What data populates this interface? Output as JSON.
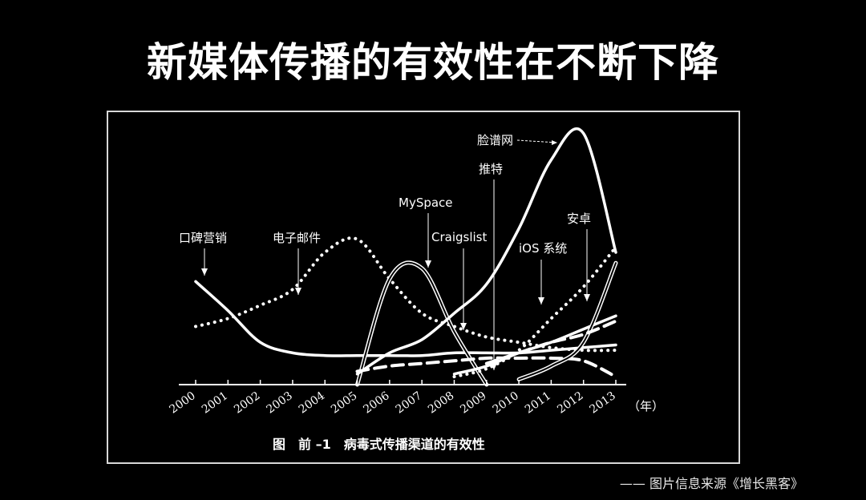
{
  "slide": {
    "title": "新媒体传播的有效性在不断下降",
    "source": "—— 图片信息来源《增长黑客》"
  },
  "chart_data": {
    "type": "line",
    "caption": "图　前 –1　病毒式传播渠道的有效性",
    "x_unit": "（年）",
    "categories": [
      "2000",
      "2001",
      "2002",
      "2003",
      "2004",
      "2005",
      "2006",
      "2007",
      "2008",
      "2009",
      "2010",
      "2011",
      "2012",
      "2013"
    ],
    "ylim": [
      0,
      100
    ],
    "grid": false,
    "legend": "inline-annotations",
    "series": [
      {
        "name": "口碑营销",
        "style": "solid",
        "x": [
          2000,
          2001,
          2002,
          2003,
          2004,
          2005,
          2006,
          2007,
          2008,
          2009,
          2010,
          2011,
          2012,
          2013
        ],
        "y": [
          39,
          28,
          16,
          12,
          11,
          11,
          11,
          11,
          12,
          12,
          12,
          13,
          14,
          15
        ]
      },
      {
        "name": "电子邮件",
        "style": "dotted",
        "x": [
          2000,
          2001,
          2002,
          2003,
          2004,
          2005,
          2006,
          2007,
          2008,
          2009,
          2010,
          2011,
          2012,
          2013
        ],
        "y": [
          22,
          25,
          30,
          36,
          50,
          55,
          40,
          27,
          22,
          18,
          16,
          14,
          13,
          13
        ]
      },
      {
        "name": "MySpace",
        "style": "double",
        "x": [
          2005,
          2006,
          2007,
          2008,
          2009
        ],
        "y": [
          0,
          40,
          44,
          20,
          0
        ]
      },
      {
        "name": "Craigslist",
        "style": "dashed",
        "x": [
          2005,
          2006,
          2007,
          2008,
          2009,
          2010,
          2011,
          2012,
          2013
        ],
        "y": [
          5,
          7,
          8,
          9,
          10,
          10,
          10,
          9,
          3
        ]
      },
      {
        "name": "推特",
        "style": "dotted",
        "x": [
          2008,
          2009,
          2010,
          2011,
          2012,
          2013
        ],
        "y": [
          3,
          6,
          13,
          25,
          37,
          52
        ]
      },
      {
        "name": "脸谱网",
        "style": "solid",
        "x": [
          2005,
          2006,
          2007,
          2008,
          2009,
          2010,
          2011,
          2012,
          2013
        ],
        "y": [
          4,
          12,
          17,
          27,
          38,
          59,
          85,
          95,
          50
        ]
      },
      {
        "name": "iOS 系统",
        "style": "solid",
        "x": [
          2008,
          2009,
          2010,
          2011,
          2012,
          2013
        ],
        "y": [
          4,
          7,
          12,
          16,
          21,
          26
        ]
      },
      {
        "name": "安卓",
        "style": "double",
        "x": [
          2010,
          2011,
          2012,
          2013
        ],
        "y": [
          2,
          7,
          16,
          46
        ]
      },
      {
        "name": "",
        "style": "dashed",
        "x": [
          2009,
          2010,
          2011,
          2012,
          2013
        ],
        "y": [
          8,
          12,
          16,
          19,
          24
        ]
      }
    ]
  }
}
